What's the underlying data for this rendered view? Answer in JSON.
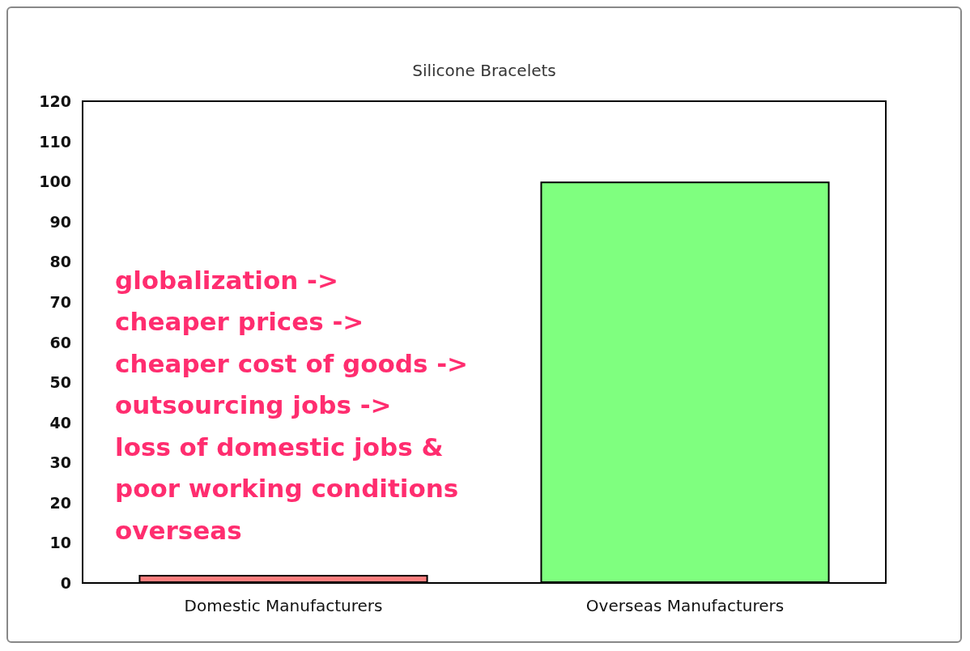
{
  "chart_data": {
    "type": "bar",
    "subtitle": "Silicone Bracelets",
    "categories": [
      "Domestic Manufacturers",
      "Overseas Manufacturers"
    ],
    "values": [
      2,
      100
    ],
    "colors": [
      "#ff7f7f",
      "#7fff7f"
    ],
    "ylim": [
      0,
      120
    ],
    "yticks": [
      0,
      10,
      20,
      30,
      40,
      50,
      60,
      70,
      80,
      90,
      100,
      110,
      120
    ],
    "grid": false,
    "annotations": [
      "globalization ->\ncheaper prices ->\ncheaper cost of goods ->\noutsourcing jobs ->\nloss of domestic jobs &\npoor working conditions\noverseas"
    ]
  }
}
